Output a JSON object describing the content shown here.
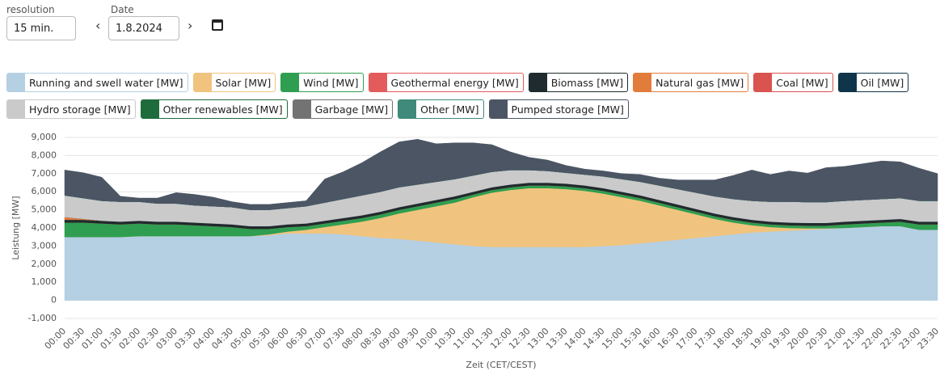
{
  "controls": {
    "resolution_label": "resolution",
    "resolution": "15 min.",
    "date_label": "Date",
    "date": "1.8.2024"
  },
  "chart_data": {
    "type": "stacked_area",
    "x_label": "Zeit (CET/CEST)",
    "y_label": "Leistung [MW]",
    "ylim": [
      -1000,
      9000
    ],
    "yticks": [
      {
        "value": -1000,
        "label": "-1,000"
      },
      0,
      {
        "value": 1000,
        "label": "1,000"
      },
      {
        "value": 2000,
        "label": "2,000"
      },
      {
        "value": 3000,
        "label": "3,000"
      },
      {
        "value": 4000,
        "label": "4,000"
      },
      {
        "value": 5000,
        "label": "5,000"
      },
      {
        "value": 6000,
        "label": "6,000"
      },
      {
        "value": 7000,
        "label": "7,000"
      },
      {
        "value": 8000,
        "label": "8,000"
      },
      {
        "value": 9000,
        "label": "9,000"
      }
    ],
    "grid": true,
    "categories": [
      "00:00",
      "00:30",
      "01:00",
      "01:30",
      "02:00",
      "02:30",
      "03:00",
      "03:30",
      "04:00",
      "04:30",
      "05:00",
      "05:30",
      "06:00",
      "06:30",
      "07:00",
      "07:30",
      "08:00",
      "08:30",
      "09:00",
      "09:30",
      "10:00",
      "10:30",
      "11:00",
      "11:30",
      "12:00",
      "12:30",
      "13:00",
      "13:30",
      "14:00",
      "14:30",
      "15:00",
      "15:30",
      "16:00",
      "16:30",
      "17:00",
      "17:30",
      "18:00",
      "18:30",
      "19:00",
      "19:30",
      "20:00",
      "20:30",
      "21:00",
      "21:30",
      "22:00",
      "22:30",
      "23:00",
      "23:30"
    ],
    "series": [
      {
        "name": "Running and swell water [MW]",
        "color": "#b5cfe3",
        "values": [
          3500,
          3500,
          3500,
          3500,
          3550,
          3550,
          3550,
          3550,
          3550,
          3550,
          3550,
          3600,
          3700,
          3700,
          3700,
          3650,
          3550,
          3450,
          3400,
          3300,
          3200,
          3100,
          3000,
          2950,
          2950,
          2950,
          2950,
          2950,
          2950,
          3000,
          3050,
          3150,
          3250,
          3350,
          3450,
          3550,
          3650,
          3750,
          3800,
          3850,
          3900,
          3950,
          4000,
          4050,
          4100,
          4100,
          3900,
          3900
        ]
      },
      {
        "name": "Solar [MW]",
        "color": "#f0c47e",
        "values": [
          0,
          0,
          0,
          0,
          0,
          0,
          0,
          0,
          0,
          0,
          0,
          50,
          100,
          200,
          350,
          550,
          800,
          1100,
          1400,
          1700,
          2000,
          2300,
          2700,
          3000,
          3150,
          3250,
          3250,
          3200,
          3100,
          2900,
          2650,
          2350,
          2000,
          1650,
          1300,
          950,
          650,
          400,
          250,
          150,
          80,
          30,
          0,
          0,
          0,
          0,
          0,
          0
        ]
      },
      {
        "name": "Wind [MW]",
        "color": "#2f9e50",
        "values": [
          800,
          800,
          750,
          700,
          700,
          650,
          650,
          600,
          550,
          500,
          400,
          300,
          250,
          200,
          200,
          200,
          200,
          200,
          200,
          200,
          200,
          200,
          150,
          150,
          150,
          150,
          150,
          150,
          150,
          150,
          150,
          150,
          150,
          150,
          150,
          150,
          150,
          150,
          150,
          150,
          150,
          150,
          200,
          200,
          200,
          250,
          300,
          300
        ]
      },
      {
        "name": "Geothermal energy [MW]",
        "color": "#e35b5b",
        "values": [
          0,
          0,
          0,
          0,
          0,
          0,
          0,
          0,
          0,
          0,
          0,
          0,
          0,
          0,
          0,
          0,
          0,
          0,
          0,
          0,
          0,
          0,
          0,
          0,
          0,
          0,
          0,
          0,
          0,
          0,
          0,
          0,
          0,
          0,
          0,
          0,
          0,
          0,
          0,
          0,
          0,
          0,
          0,
          0,
          0,
          0,
          0,
          0
        ]
      },
      {
        "name": "Biomass [MW]",
        "color": "#1f2b2e",
        "values": [
          150,
          150,
          150,
          150,
          150,
          150,
          150,
          150,
          150,
          150,
          150,
          150,
          150,
          150,
          150,
          150,
          150,
          150,
          150,
          150,
          150,
          150,
          150,
          150,
          150,
          150,
          150,
          150,
          150,
          150,
          150,
          150,
          150,
          150,
          150,
          150,
          150,
          150,
          150,
          150,
          150,
          150,
          150,
          150,
          150,
          150,
          150,
          150
        ]
      },
      {
        "name": "Natural gas [MW]",
        "color": "#e27c3a",
        "values": [
          150,
          50,
          0,
          0,
          0,
          0,
          0,
          0,
          0,
          0,
          0,
          0,
          0,
          0,
          0,
          0,
          0,
          0,
          0,
          0,
          0,
          0,
          0,
          0,
          0,
          0,
          0,
          0,
          0,
          0,
          0,
          0,
          0,
          0,
          0,
          0,
          0,
          0,
          0,
          0,
          0,
          0,
          0,
          0,
          0,
          0,
          0,
          0
        ]
      },
      {
        "name": "Coal [MW]",
        "color": "#d9534f",
        "values": [
          0,
          0,
          0,
          0,
          0,
          0,
          0,
          0,
          0,
          0,
          0,
          0,
          0,
          0,
          0,
          0,
          0,
          0,
          0,
          0,
          0,
          0,
          0,
          0,
          0,
          0,
          0,
          0,
          0,
          0,
          0,
          0,
          0,
          0,
          0,
          0,
          0,
          0,
          0,
          0,
          0,
          0,
          0,
          0,
          0,
          0,
          0,
          0
        ]
      },
      {
        "name": "Oil [MW]",
        "color": "#10344a",
        "values": [
          0,
          0,
          0,
          0,
          0,
          0,
          0,
          0,
          0,
          0,
          0,
          0,
          0,
          0,
          0,
          0,
          0,
          0,
          0,
          0,
          0,
          0,
          0,
          0,
          0,
          0,
          0,
          0,
          0,
          0,
          0,
          0,
          0,
          0,
          0,
          0,
          0,
          0,
          0,
          0,
          0,
          0,
          0,
          0,
          0,
          0,
          0,
          0
        ]
      },
      {
        "name": "Hydro storage [MW]",
        "color": "#cacaca",
        "values": [
          1200,
          1150,
          1100,
          1100,
          1050,
          1000,
          1000,
          950,
          950,
          950,
          900,
          900,
          900,
          950,
          1000,
          1050,
          1100,
          1100,
          1100,
          1050,
          1000,
          950,
          900,
          850,
          800,
          700,
          650,
          600,
          600,
          650,
          700,
          750,
          800,
          850,
          900,
          950,
          1000,
          1050,
          1100,
          1150,
          1150,
          1150,
          1150,
          1150,
          1150,
          1150,
          1150,
          1150
        ]
      },
      {
        "name": "Other renewables [MW]",
        "color": "#1e6b3b",
        "values": [
          0,
          0,
          0,
          0,
          0,
          0,
          0,
          0,
          0,
          0,
          0,
          0,
          0,
          0,
          0,
          0,
          0,
          0,
          0,
          0,
          0,
          0,
          0,
          0,
          0,
          0,
          0,
          0,
          0,
          0,
          0,
          0,
          0,
          0,
          0,
          0,
          0,
          0,
          0,
          0,
          0,
          0,
          0,
          0,
          0,
          0,
          0,
          0
        ]
      },
      {
        "name": "Garbage [MW]",
        "color": "#737373",
        "values": [
          0,
          0,
          0,
          0,
          0,
          0,
          0,
          0,
          0,
          0,
          0,
          0,
          0,
          0,
          0,
          0,
          0,
          0,
          0,
          0,
          0,
          0,
          0,
          0,
          0,
          0,
          0,
          0,
          0,
          0,
          0,
          0,
          0,
          0,
          0,
          0,
          0,
          0,
          0,
          0,
          0,
          0,
          0,
          0,
          0,
          0,
          0,
          0
        ]
      },
      {
        "name": "Other [MW]",
        "color": "#3f8a7a",
        "values": [
          0,
          0,
          0,
          0,
          0,
          0,
          0,
          0,
          0,
          0,
          0,
          0,
          0,
          0,
          0,
          0,
          0,
          0,
          0,
          0,
          0,
          0,
          0,
          0,
          0,
          0,
          0,
          0,
          0,
          0,
          0,
          0,
          0,
          0,
          0,
          0,
          0,
          0,
          0,
          0,
          0,
          0,
          0,
          0,
          0,
          0,
          0,
          0
        ]
      },
      {
        "name": "Pumped storage [MW]",
        "color": "#4b5564",
        "values": [
          1400,
          1400,
          1300,
          300,
          200,
          300,
          600,
          600,
          500,
          300,
          300,
          300,
          300,
          300,
          1300,
          1500,
          1800,
          2200,
          2500,
          2500,
          2100,
          2000,
          1800,
          1500,
          1000,
          700,
          600,
          400,
          300,
          300,
          300,
          400,
          400,
          500,
          700,
          900,
          1300,
          1700,
          1500,
          1700,
          1600,
          1900,
          1900,
          2000,
          2100,
          2000,
          1800,
          1500
        ]
      }
    ]
  }
}
